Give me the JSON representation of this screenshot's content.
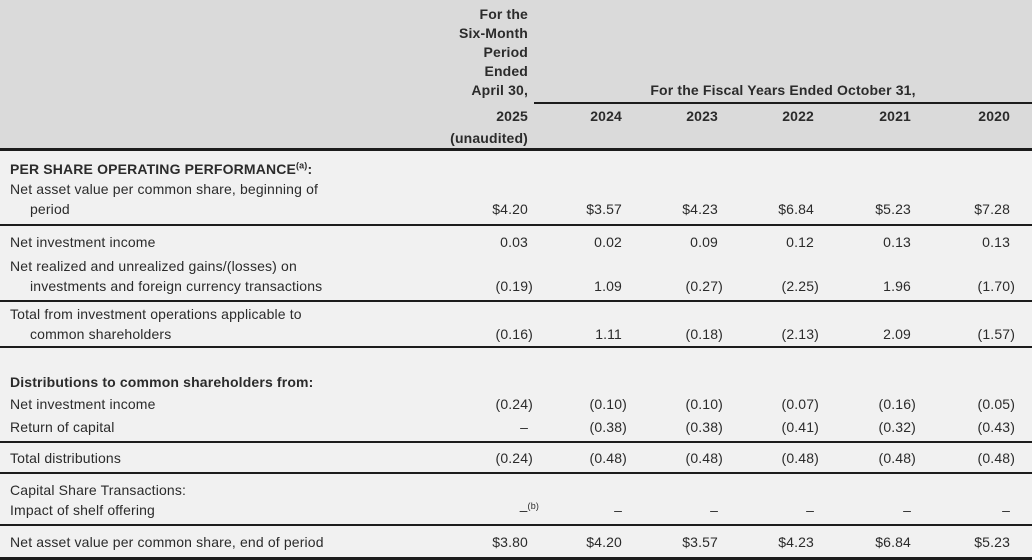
{
  "table": {
    "header": {
      "period_lines": [
        "For the",
        "Six-Month",
        "Period Ended",
        "April 30,"
      ],
      "period_year": "2025",
      "period_note": "(unaudited)",
      "fiscal_group_label": "For the Fiscal Years Ended October 31,",
      "fiscal_years": [
        "2024",
        "2023",
        "2022",
        "2021",
        "2020"
      ]
    },
    "rows": [
      {
        "type": "section",
        "label": "PER SHARE OPERATING PERFORMANCE",
        "sup": "(a)",
        "suffix": ":"
      },
      {
        "type": "data",
        "label_lines": [
          "Net asset value per common share, beginning of",
          "period"
        ],
        "values": [
          "$4.20",
          "$3.57",
          "$4.23",
          "$6.84",
          "$5.23",
          "$7.28"
        ],
        "rule": true
      },
      {
        "type": "data",
        "label_lines": [
          "Net investment income"
        ],
        "values": [
          "0.03",
          "0.02",
          "0.09",
          "0.12",
          "0.13",
          "0.13"
        ]
      },
      {
        "type": "data",
        "label_lines": [
          "Net realized and unrealized gains/(losses) on",
          "investments and foreign currency transactions"
        ],
        "values": [
          "(0.19)",
          "1.09",
          "(0.27)",
          "(2.25)",
          "1.96",
          "(1.70)"
        ],
        "rule": true
      },
      {
        "type": "data",
        "label_lines": [
          "Total from investment operations applicable to",
          "common shareholders"
        ],
        "values": [
          "(0.16)",
          "1.11",
          "(0.18)",
          "(2.13)",
          "2.09",
          "(1.57)"
        ],
        "rule": true
      },
      {
        "type": "spacer"
      },
      {
        "type": "section",
        "label": "Distributions to common shareholders from:"
      },
      {
        "type": "data",
        "label_lines": [
          "Net investment income"
        ],
        "values": [
          "(0.24)",
          "(0.10)",
          "(0.10)",
          "(0.07)",
          "(0.16)",
          "(0.05)"
        ]
      },
      {
        "type": "data",
        "label_lines": [
          "Return of capital"
        ],
        "values": [
          "–",
          "(0.38)",
          "(0.38)",
          "(0.41)",
          "(0.32)",
          "(0.43)"
        ],
        "rule": true
      },
      {
        "type": "data",
        "label_lines": [
          "Total distributions"
        ],
        "values": [
          "(0.24)",
          "(0.48)",
          "(0.48)",
          "(0.48)",
          "(0.48)",
          "(0.48)"
        ],
        "rule": true
      },
      {
        "type": "section",
        "label": "Capital Share Transactions:"
      },
      {
        "type": "data",
        "label_lines": [
          "Impact of shelf offering"
        ],
        "values": [
          {
            "v": "–",
            "sup": "(b)"
          },
          "–",
          "–",
          "–",
          "–",
          "–"
        ],
        "rule": true
      },
      {
        "type": "data",
        "label_lines": [
          "Net asset value per common share, end of period"
        ],
        "values": [
          "$3.80",
          "$4.20",
          "$3.57",
          "$4.23",
          "$6.84",
          "$5.23"
        ],
        "rule": true
      }
    ]
  }
}
